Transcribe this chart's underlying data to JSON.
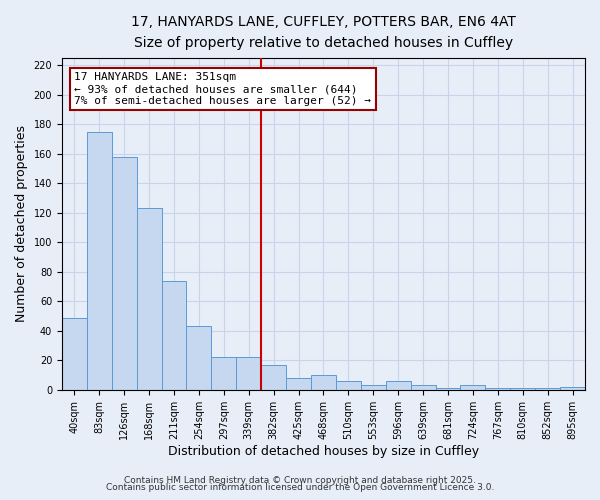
{
  "title": "17, HANYARDS LANE, CUFFLEY, POTTERS BAR, EN6 4AT",
  "subtitle": "Size of property relative to detached houses in Cuffley",
  "xlabel": "Distribution of detached houses by size in Cuffley",
  "ylabel": "Number of detached properties",
  "categories": [
    "40sqm",
    "83sqm",
    "126sqm",
    "168sqm",
    "211sqm",
    "254sqm",
    "297sqm",
    "339sqm",
    "382sqm",
    "425sqm",
    "468sqm",
    "510sqm",
    "553sqm",
    "596sqm",
    "639sqm",
    "681sqm",
    "724sqm",
    "767sqm",
    "810sqm",
    "852sqm",
    "895sqm"
  ],
  "values": [
    49,
    175,
    158,
    123,
    74,
    43,
    22,
    22,
    17,
    8,
    10,
    6,
    3,
    6,
    3,
    1,
    3,
    1,
    1,
    1,
    2
  ],
  "bar_color": "#c5d8f0",
  "bar_edge_color": "#5a9ad5",
  "marker_bar_index": 7,
  "annotation_line1": "17 HANYARDS LANE: 351sqm",
  "annotation_line2": "← 93% of detached houses are smaller (644)",
  "annotation_line3": "7% of semi-detached houses are larger (52) →",
  "annotation_box_color": "#ffffff",
  "annotation_box_edge_color": "#990000",
  "marker_line_color": "#cc0000",
  "footer1": "Contains HM Land Registry data © Crown copyright and database right 2025.",
  "footer2": "Contains public sector information licensed under the Open Government Licence 3.0.",
  "background_color": "#e8eef8",
  "plot_background_color": "#e8eef8",
  "grid_color": "#c8d4e8",
  "title_fontsize": 10,
  "subtitle_fontsize": 9,
  "axis_label_fontsize": 9,
  "tick_fontsize": 7,
  "annotation_fontsize": 8,
  "footer_fontsize": 6.5,
  "ylim": [
    0,
    225
  ]
}
